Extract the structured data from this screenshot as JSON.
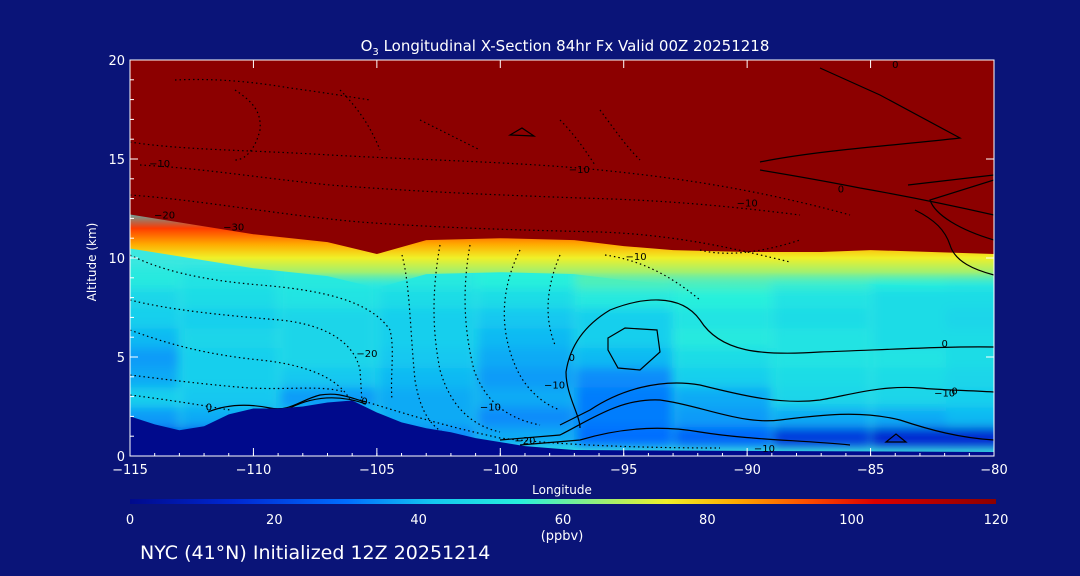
{
  "chart_data": {
    "type": "heatmap",
    "title": "O3 Longitudinal X-Section 84hr  Fx Valid 00Z 20251218",
    "title_species_main": "O",
    "title_species_sub": "3",
    "title_rest": " Longitudinal X-Section 84hr  Fx Valid 00Z 20251218",
    "xlabel": "Longitude",
    "ylabel": "Altitude (km)",
    "xlim": [
      -115,
      -80
    ],
    "ylim": [
      0,
      20
    ],
    "x_ticks": [
      -115,
      -110,
      -105,
      -100,
      -95,
      -90,
      -85,
      -80
    ],
    "x_tick_labels": [
      "−115",
      "−110",
      "−105",
      "−100",
      "−95",
      "−90",
      "−85",
      "−80"
    ],
    "y_ticks": [
      0,
      5,
      10,
      15,
      20
    ],
    "y_tick_labels": [
      "0",
      "5",
      "10",
      "15",
      "20"
    ],
    "colorbar": {
      "min": 0,
      "max": 120,
      "ticks": [
        0,
        20,
        40,
        60,
        80,
        100,
        120
      ],
      "tick_labels": [
        "0",
        "20",
        "40",
        "60",
        "80",
        "100",
        "120"
      ],
      "units": "(ppbv)"
    },
    "terrain_km": {
      "lon": [
        -115,
        -114,
        -113,
        -112,
        -111,
        -110,
        -109,
        -108,
        -107,
        -106,
        -105,
        -104,
        -103,
        -102,
        -101,
        -100,
        -99,
        -98,
        -97,
        -80
      ],
      "alt": [
        2.0,
        1.6,
        1.3,
        1.5,
        2.1,
        2.4,
        2.4,
        2.5,
        2.7,
        2.8,
        2.2,
        1.7,
        1.4,
        1.2,
        0.9,
        0.7,
        0.5,
        0.4,
        0.3,
        0.2
      ]
    },
    "tropopause_km": {
      "lon": [
        -115,
        -113,
        -110,
        -107,
        -105,
        -103,
        -100,
        -97,
        -95,
        -93,
        -90,
        -87,
        -85,
        -80
      ],
      "alt": [
        12.2,
        11.8,
        11.2,
        10.8,
        10.2,
        10.9,
        11.0,
        10.9,
        10.6,
        10.4,
        10.3,
        10.3,
        10.4,
        10.2
      ]
    },
    "ozone_field": {
      "lon": [
        -115,
        -111,
        -107,
        -103,
        -99,
        -95,
        -91,
        -87,
        -83,
        -80
      ],
      "alt": [
        1,
        2,
        3,
        4,
        5,
        6,
        7,
        8,
        9
      ],
      "ppbv": [
        [
          22,
          24,
          26,
          34,
          38,
          30,
          28,
          18,
          14,
          14
        ],
        [
          36,
          38,
          40,
          38,
          34,
          32,
          36,
          38,
          38,
          40
        ],
        [
          44,
          42,
          36,
          38,
          38,
          32,
          38,
          46,
          46,
          44
        ],
        [
          38,
          44,
          42,
          40,
          36,
          34,
          44,
          48,
          48,
          46
        ],
        [
          36,
          44,
          46,
          42,
          38,
          40,
          48,
          50,
          50,
          48
        ],
        [
          40,
          46,
          46,
          44,
          40,
          44,
          52,
          50,
          48,
          48
        ],
        [
          44,
          44,
          46,
          44,
          42,
          44,
          50,
          48,
          48,
          46
        ],
        [
          46,
          48,
          50,
          48,
          48,
          52,
          54,
          50,
          48,
          48
        ],
        [
          52,
          50,
          52,
          52,
          54,
          58,
          58,
          56,
          54,
          52
        ]
      ]
    },
    "contour_labels": [
      {
        "text": "0",
        "lon": -111.8,
        "alt": 2.3
      },
      {
        "text": "0",
        "lon": -105.5,
        "alt": 2.6
      },
      {
        "text": "0",
        "lon": -97.1,
        "alt": 4.8
      },
      {
        "text": "0",
        "lon": -82.0,
        "alt": 5.5
      },
      {
        "text": "0",
        "lon": -81.6,
        "alt": 3.1
      },
      {
        "text": "0",
        "lon": -86.2,
        "alt": 13.3
      },
      {
        "text": "0",
        "lon": -84.0,
        "alt": 19.6
      },
      {
        "text": "−10",
        "lon": -113.8,
        "alt": 14.6
      },
      {
        "text": "−10",
        "lon": -96.8,
        "alt": 14.3
      },
      {
        "text": "−10",
        "lon": -90.0,
        "alt": 12.6
      },
      {
        "text": "−10",
        "lon": -94.5,
        "alt": 9.9
      },
      {
        "text": "−10",
        "lon": -100.4,
        "alt": 2.3
      },
      {
        "text": "−10",
        "lon": -89.3,
        "alt": 0.2
      },
      {
        "text": "−10",
        "lon": -82.0,
        "alt": 3.0
      },
      {
        "text": "−20",
        "lon": -113.6,
        "alt": 12.0
      },
      {
        "text": "−20",
        "lon": -105.4,
        "alt": 5.0
      },
      {
        "text": "−20",
        "lon": -99.0,
        "alt": 0.6
      },
      {
        "text": "−30",
        "lon": -110.8,
        "alt": 11.4
      },
      {
        "text": "−10",
        "lon": -97.8,
        "alt": 3.4
      }
    ]
  },
  "footer": {
    "text": "NYC (41°N) Initialized 12Z 20251214"
  }
}
